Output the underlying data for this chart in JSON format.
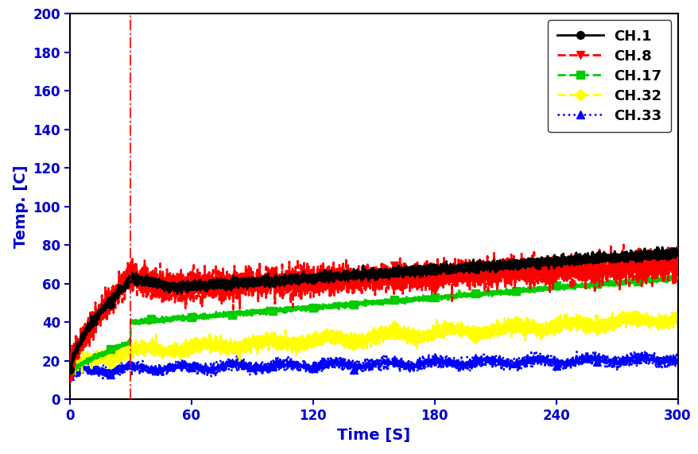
{
  "title": "",
  "xlabel": "Time [S]",
  "ylabel": "Temp. [C]",
  "xlim": [
    0,
    300
  ],
  "ylim": [
    0,
    200
  ],
  "xticks": [
    0,
    60,
    120,
    180,
    240,
    300
  ],
  "yticks": [
    0,
    20,
    40,
    60,
    80,
    100,
    120,
    140,
    160,
    180,
    200
  ],
  "vline_x": 30,
  "vline_color": "red",
  "vline_style": "-.",
  "channels": [
    "CH.1",
    "CH.8",
    "CH.17",
    "CH.32",
    "CH.33"
  ],
  "colors": [
    "black",
    "red",
    "#00cc00",
    "yellow",
    "blue"
  ],
  "linestyles": [
    "-",
    "--",
    "--",
    "--",
    ":"
  ],
  "markers": [
    "o",
    "v",
    "s",
    "D",
    "^"
  ],
  "label_color": "#0000cc",
  "tick_color": "#0000cc",
  "seed": 42,
  "figsize": [
    8.79,
    5.71
  ],
  "dpi": 100
}
